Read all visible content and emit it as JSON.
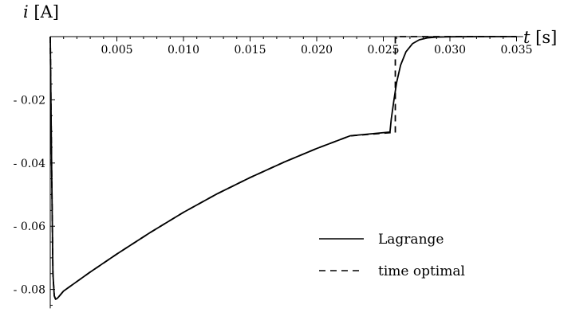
{
  "chart_data": {
    "type": "line",
    "xlabel": "t [s]",
    "ylabel": "i [A]",
    "xlim": [
      0,
      0.0355
    ],
    "ylim": [
      -0.086,
      0.0
    ],
    "x_ticks": [
      "0.005",
      "0.010",
      "0.015",
      "0.020",
      "0.025",
      "0.030",
      "0.035"
    ],
    "y_ticks": [
      "-0.02",
      "-0.04",
      "-0.06",
      "-0.08"
    ],
    "legend_position": "bottom-right",
    "series": [
      {
        "name": "Lagrange",
        "style": "solid",
        "x": [
          0.0,
          0.0001,
          0.0002,
          0.0003,
          0.0004,
          0.0005,
          0.0006,
          0.0008,
          0.001,
          0.002,
          0.003,
          0.005,
          0.0075,
          0.01,
          0.0125,
          0.015,
          0.0175,
          0.02,
          0.0225,
          0.0255,
          0.0256,
          0.0258,
          0.026,
          0.0263,
          0.0267,
          0.0272,
          0.0277,
          0.0283,
          0.029,
          0.03,
          0.032,
          0.035
        ],
        "y": [
          0.0,
          -0.04,
          -0.075,
          -0.082,
          -0.0831,
          -0.0829,
          -0.0825,
          -0.0815,
          -0.0805,
          -0.0775,
          -0.0745,
          -0.0688,
          -0.062,
          -0.0556,
          -0.0498,
          -0.0446,
          -0.0398,
          -0.0354,
          -0.0314,
          -0.0302,
          -0.026,
          -0.02,
          -0.0145,
          -0.009,
          -0.0048,
          -0.0022,
          -0.001,
          -0.0004,
          -0.00015,
          -5e-05,
          0.0,
          0.0
        ]
      },
      {
        "name": "time optimal",
        "style": "dashed",
        "x": [
          0.0,
          0.0001,
          0.0002,
          0.0003,
          0.0004,
          0.0005,
          0.0006,
          0.0008,
          0.001,
          0.002,
          0.003,
          0.005,
          0.0075,
          0.01,
          0.0125,
          0.015,
          0.0175,
          0.02,
          0.0225,
          0.0255,
          0.0259,
          0.0259,
          0.0263,
          0.035
        ],
        "y": [
          0.0,
          -0.04,
          -0.075,
          -0.082,
          -0.0831,
          -0.0829,
          -0.0825,
          -0.0815,
          -0.0805,
          -0.0775,
          -0.0745,
          -0.0688,
          -0.062,
          -0.0556,
          -0.0498,
          -0.0446,
          -0.0398,
          -0.0354,
          -0.0314,
          -0.0304,
          -0.0304,
          0.0,
          0.0,
          0.0
        ]
      }
    ]
  }
}
